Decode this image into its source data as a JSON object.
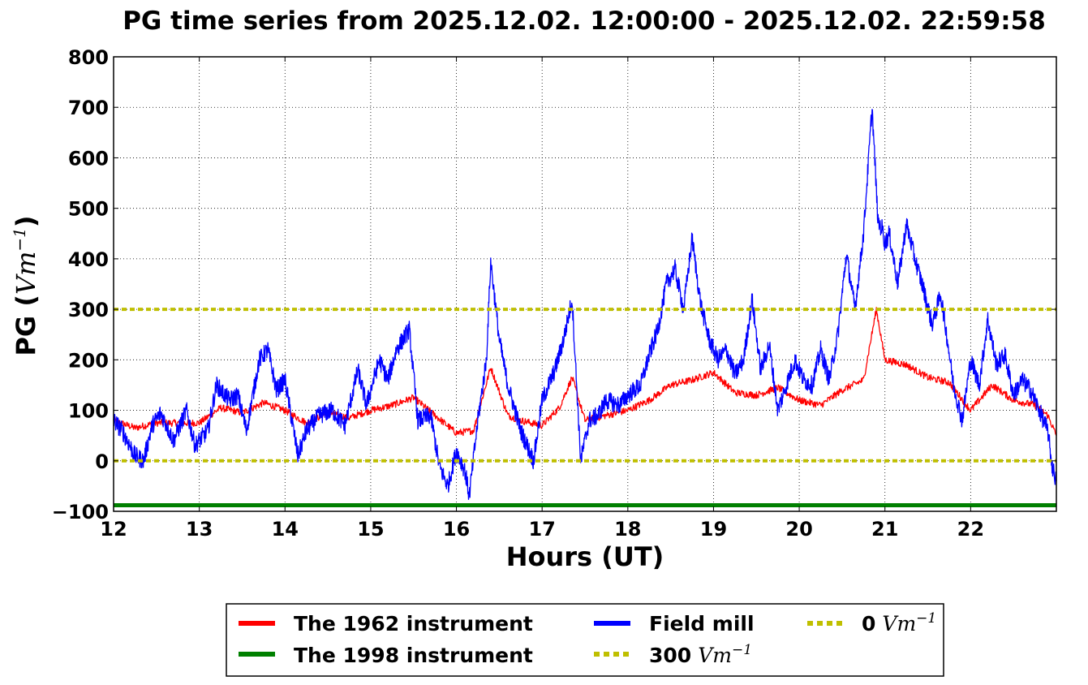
{
  "chart_data": {
    "type": "line",
    "title": "PG time series from 2025.12.02. 12:00:00 - 2025.12.02. 22:59:58",
    "xlabel": "Hours (UT)",
    "ylabel": {
      "text": "PG (",
      "math": "Vm",
      "sup": "−1",
      "close": ")"
    },
    "xlim": [
      12,
      23
    ],
    "ylim": [
      -100,
      800
    ],
    "x_ticks": [
      "12",
      "13",
      "14",
      "15",
      "16",
      "17",
      "18",
      "19",
      "20",
      "21",
      "22"
    ],
    "y_ticks": [
      "−100",
      "0",
      "100",
      "200",
      "300",
      "400",
      "500",
      "600",
      "700",
      "800"
    ],
    "grid": true,
    "legend_position": "bottom-outside",
    "series": [
      {
        "name": "The 1962 instrument",
        "color": "#ff0000",
        "x": [
          12.0,
          12.25,
          12.5,
          12.75,
          13.0,
          13.25,
          13.5,
          13.75,
          14.0,
          14.25,
          14.5,
          14.75,
          15.0,
          15.25,
          15.5,
          15.75,
          16.0,
          16.2,
          16.4,
          16.6,
          16.75,
          17.0,
          17.2,
          17.35,
          17.5,
          17.75,
          18.0,
          18.25,
          18.5,
          18.75,
          19.0,
          19.25,
          19.5,
          19.75,
          20.0,
          20.25,
          20.5,
          20.75,
          20.9,
          21.0,
          21.25,
          21.5,
          21.75,
          22.0,
          22.25,
          22.5,
          22.75,
          22.9,
          23.0
        ],
        "values": [
          80,
          65,
          75,
          75,
          75,
          105,
          95,
          115,
          100,
          75,
          95,
          85,
          100,
          110,
          125,
          90,
          55,
          60,
          185,
          90,
          80,
          70,
          105,
          165,
          80,
          90,
          100,
          120,
          150,
          160,
          175,
          135,
          130,
          145,
          120,
          110,
          140,
          160,
          300,
          200,
          190,
          165,
          155,
          100,
          150,
          120,
          110,
          90,
          50
        ]
      },
      {
        "name": "The 1998 instrument",
        "color": "#008000",
        "x": [
          12.0,
          23.0
        ],
        "values": [
          -88,
          -88
        ]
      },
      {
        "name": "Field mill",
        "color": "#0000ff",
        "x": [
          12.0,
          12.1,
          12.25,
          12.35,
          12.45,
          12.55,
          12.7,
          12.85,
          12.95,
          13.1,
          13.2,
          13.35,
          13.45,
          13.55,
          13.7,
          13.8,
          13.9,
          14.0,
          14.15,
          14.25,
          14.4,
          14.55,
          14.7,
          14.85,
          14.95,
          15.1,
          15.2,
          15.3,
          15.45,
          15.55,
          15.7,
          15.8,
          15.9,
          16.0,
          16.1,
          16.15,
          16.25,
          16.35,
          16.4,
          16.5,
          16.6,
          16.75,
          16.9,
          17.0,
          17.15,
          17.25,
          17.35,
          17.45,
          17.55,
          17.65,
          17.75,
          17.9,
          18.0,
          18.15,
          18.25,
          18.35,
          18.45,
          18.55,
          18.65,
          18.75,
          18.85,
          18.95,
          19.05,
          19.15,
          19.25,
          19.35,
          19.45,
          19.55,
          19.65,
          19.75,
          19.85,
          19.95,
          20.05,
          20.15,
          20.25,
          20.35,
          20.45,
          20.55,
          20.65,
          20.75,
          20.85,
          20.92,
          20.97,
          21.0,
          21.05,
          21.15,
          21.25,
          21.35,
          21.45,
          21.55,
          21.65,
          21.72,
          21.8,
          21.9,
          22.0,
          22.1,
          22.2,
          22.3,
          22.4,
          22.5,
          22.6,
          22.7,
          22.8,
          22.9,
          22.95,
          23.0
        ],
        "values": [
          80,
          60,
          10,
          0,
          70,
          95,
          40,
          100,
          30,
          60,
          150,
          120,
          130,
          60,
          200,
          220,
          140,
          160,
          10,
          60,
          90,
          100,
          70,
          180,
          110,
          200,
          160,
          220,
          260,
          80,
          90,
          -10,
          -50,
          20,
          -20,
          -70,
          80,
          200,
          395,
          240,
          150,
          60,
          0,
          120,
          180,
          240,
          320,
          0,
          80,
          90,
          120,
          110,
          130,
          150,
          210,
          260,
          350,
          380,
          300,
          440,
          310,
          240,
          200,
          220,
          170,
          200,
          320,
          180,
          230,
          100,
          150,
          200,
          160,
          150,
          220,
          160,
          250,
          410,
          300,
          450,
          700,
          470,
          460,
          430,
          450,
          350,
          470,
          400,
          340,
          270,
          330,
          250,
          150,
          80,
          200,
          150,
          280,
          190,
          210,
          130,
          160,
          140,
          100,
          60,
          -10,
          -40
        ]
      },
      {
        "name": "300 Vm⁻¹",
        "label_main": "300",
        "label_math": "Vm",
        "label_sup": "−1",
        "color": "#bfbf00",
        "x": [
          12.0,
          23.0
        ],
        "values": [
          300,
          300
        ]
      },
      {
        "name": "0 Vm⁻¹",
        "label_main": "0",
        "label_math": "Vm",
        "label_sup": "−1",
        "color": "#bfbf00",
        "x": [
          12.0,
          23.0
        ],
        "values": [
          0,
          0
        ]
      }
    ]
  }
}
